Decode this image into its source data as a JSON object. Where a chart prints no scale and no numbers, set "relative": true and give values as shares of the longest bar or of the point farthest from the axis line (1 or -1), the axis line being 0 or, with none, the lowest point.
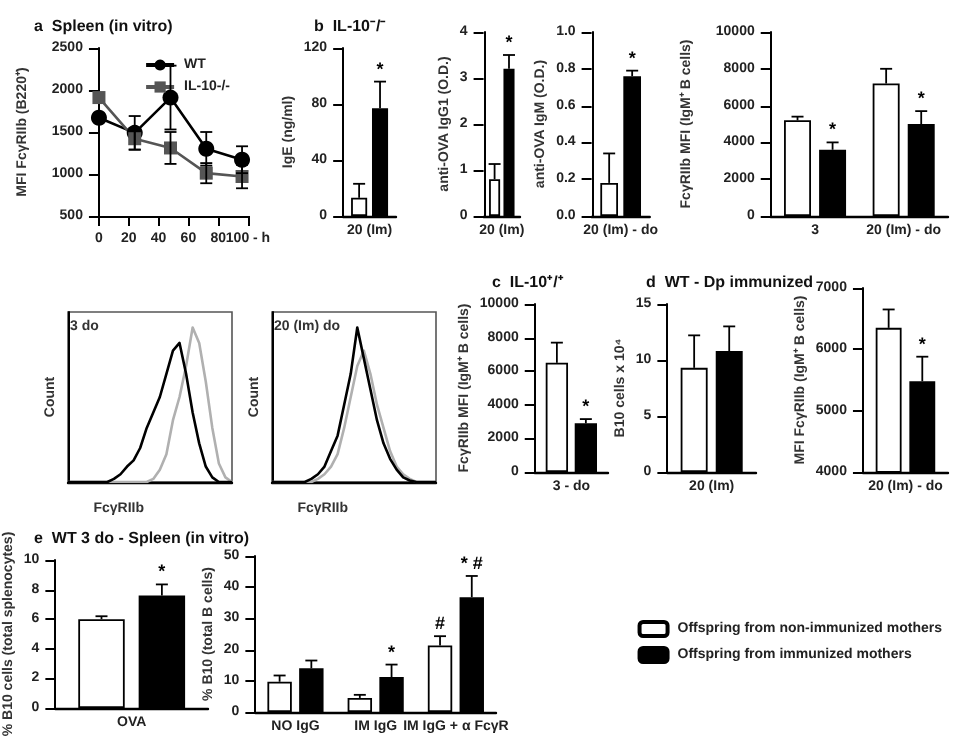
{
  "chart_data": [
    {
      "type": "line",
      "title": "a  Spleen (in vitro)",
      "ylabel": "MFI FcγRIIb (B220⁺)",
      "xlim": [
        0,
        100
      ],
      "xticks": [
        0,
        20,
        40,
        60,
        80,
        {
          "value": 100,
          "label": "100 - h"
        }
      ],
      "ylim": [
        500,
        2500
      ],
      "yticks": [
        500,
        1000,
        1500,
        2000,
        2500
      ],
      "legend": "top right",
      "series": [
        {
          "name": "WT",
          "color": "#000000",
          "marker": "circle",
          "x": [
            0,
            24,
            48,
            72,
            96
          ],
          "values": [
            1670,
            1490,
            1910,
            1300,
            1170
          ],
          "errors": [
            null,
            200,
            380,
            200,
            160
          ]
        },
        {
          "name": "IL-10-/-",
          "color": "#555555",
          "marker": "square",
          "x": [
            0,
            24,
            48,
            72,
            96
          ],
          "values": [
            1910,
            1420,
            1310,
            1010,
            970
          ],
          "errors": [
            null,
            130,
            190,
            120,
            140
          ]
        }
      ]
    },
    {
      "type": "bar",
      "title": "b  IL-10⁻/⁻",
      "ylabel": "IgE (ng/ml)",
      "categories": [
        "20 (Im)"
      ],
      "ylim": [
        0,
        120
      ],
      "yticks": [
        0,
        40,
        80,
        120
      ],
      "series": [
        {
          "color": "#ffffff",
          "values": [
            13
          ],
          "errors": [
            10
          ]
        },
        {
          "color": "#000000",
          "values": [
            77
          ],
          "errors": [
            19
          ],
          "value_labels": [
            "*"
          ]
        }
      ]
    },
    {
      "type": "bar",
      "ylabel": "anti-OVA IgG1 (O.D.)",
      "categories": [
        "20 (Im)"
      ],
      "ylim": [
        0,
        4
      ],
      "yticks": [
        0,
        1,
        2,
        3,
        4
      ],
      "series": [
        {
          "color": "#ffffff",
          "values": [
            0.8
          ],
          "errors": [
            0.33
          ]
        },
        {
          "color": "#000000",
          "values": [
            3.2
          ],
          "errors": [
            0.3
          ],
          "value_labels": [
            "*"
          ]
        }
      ]
    },
    {
      "type": "bar",
      "ylabel": "anti-OVA IgM (O.D.)",
      "categories": [
        "20 (Im) - do"
      ],
      "ylim": [
        0,
        1
      ],
      "yticks": [
        {
          "value": 0,
          "label": "0.0"
        },
        0.2,
        0.4,
        0.6,
        0.8,
        {
          "value": 1,
          "label": "1.0"
        }
      ],
      "series": [
        {
          "color": "#ffffff",
          "values": [
            0.18
          ],
          "errors": [
            0.16
          ]
        },
        {
          "color": "#000000",
          "values": [
            0.76
          ],
          "errors": [
            0.03
          ],
          "value_labels": [
            "*"
          ]
        }
      ]
    },
    {
      "type": "bar",
      "ylabel": "FcγRIIb MFI (IgM⁺ B cells)",
      "categories": [
        "3",
        "20 (Im) - do"
      ],
      "ylim": [
        0,
        10000
      ],
      "yticks": [
        0,
        2000,
        4000,
        6000,
        8000,
        10000
      ],
      "series": [
        {
          "color": "#ffffff",
          "values": [
            5200,
            7200
          ],
          "errors": [
            200,
            800
          ]
        },
        {
          "color": "#000000",
          "values": [
            3600,
            5000
          ],
          "errors": [
            400,
            700
          ],
          "value_labels": [
            "*",
            "*"
          ]
        }
      ]
    },
    {
      "type": "line",
      "relative": true,
      "marker": "none",
      "xlabel": "FcγRIIb",
      "ylabel": "Count",
      "annotations": [
        "3 do"
      ],
      "categories": [
        null,
        null,
        null,
        null,
        null,
        null,
        null,
        null,
        null,
        null,
        null,
        null,
        null,
        null,
        null,
        null,
        null,
        null,
        null,
        null,
        null,
        null,
        null,
        null,
        null,
        null
      ],
      "series": [
        {
          "color": "#b0b0b0",
          "values": [
            0,
            0,
            0,
            0,
            0,
            0,
            0,
            0,
            0,
            0,
            0,
            0,
            0,
            0.02,
            0.08,
            0.18,
            0.4,
            0.55,
            0.75,
            1,
            0.9,
            0.65,
            0.35,
            0.12,
            0.03,
            0
          ]
        },
        {
          "color": "#000000",
          "values": [
            0,
            0,
            0,
            0,
            0,
            0,
            0,
            0.02,
            0.05,
            0.1,
            0.14,
            0.22,
            0.35,
            0.45,
            0.55,
            0.7,
            0.85,
            0.9,
            0.7,
            0.45,
            0.25,
            0.1,
            0.03,
            0,
            0,
            0
          ]
        }
      ]
    },
    {
      "type": "line",
      "relative": true,
      "marker": "none",
      "xlabel": "FcγRIIb",
      "ylabel": "Count",
      "annotations": [
        "20 (Im) do"
      ],
      "categories": [
        null,
        null,
        null,
        null,
        null,
        null,
        null,
        null,
        null,
        null,
        null,
        null,
        null,
        null,
        null,
        null,
        null,
        null,
        null,
        null,
        null,
        null,
        null,
        null,
        null,
        null
      ],
      "series": [
        {
          "color": "#b0b0b0",
          "values": [
            0,
            0,
            0,
            0,
            0,
            0,
            0,
            0.02,
            0.05,
            0.1,
            0.18,
            0.35,
            0.55,
            0.75,
            0.85,
            0.7,
            0.5,
            0.35,
            0.2,
            0.1,
            0.05,
            0.02,
            0,
            0,
            0,
            0
          ]
        },
        {
          "color": "#000000",
          "values": [
            0,
            0,
            0,
            0,
            0,
            0,
            0.02,
            0.05,
            0.1,
            0.2,
            0.3,
            0.5,
            0.7,
            1,
            0.8,
            0.6,
            0.4,
            0.25,
            0.15,
            0.08,
            0.03,
            0.01,
            0,
            0,
            0,
            0
          ]
        }
      ]
    },
    {
      "type": "bar",
      "title": "c  IL-10⁺/⁺",
      "ylabel": "FcγRIIb MFI (IgM⁺ B cells)",
      "categories": [
        "3 - do"
      ],
      "ylim": [
        0,
        10000
      ],
      "yticks": [
        0,
        2000,
        4000,
        6000,
        8000,
        10000
      ],
      "series": [
        {
          "color": "#ffffff",
          "values": [
            6500
          ],
          "errors": [
            1200
          ]
        },
        {
          "color": "#000000",
          "values": [
            2900
          ],
          "errors": [
            250
          ],
          "value_labels": [
            "*"
          ]
        }
      ]
    },
    {
      "type": "bar",
      "title": "d  WT - Dp immunized",
      "ylabel": "B10 cells x 10⁴",
      "categories": [
        "20 (Im)"
      ],
      "ylim": [
        0,
        15
      ],
      "yticks": [
        0,
        5,
        10,
        15
      ],
      "series": [
        {
          "color": "#ffffff",
          "values": [
            9.3
          ],
          "errors": [
            2.9
          ]
        },
        {
          "color": "#000000",
          "values": [
            10.8
          ],
          "errors": [
            2.2
          ]
        }
      ]
    },
    {
      "type": "bar",
      "ylabel": "MFI FcγRIIb (IgM⁺ B cells)",
      "categories": [
        "20 (Im) - do"
      ],
      "ylim": [
        4000,
        7000
      ],
      "yticks": [
        4000,
        5000,
        6000,
        7000
      ],
      "series": [
        {
          "color": "#ffffff",
          "values": [
            6350
          ],
          "errors": [
            300
          ]
        },
        {
          "color": "#000000",
          "values": [
            5480
          ],
          "errors": [
            400
          ],
          "value_labels": [
            "*"
          ]
        }
      ]
    },
    {
      "type": "bar",
      "title": "e  WT 3 do - Spleen (in vitro)",
      "ylabel": "% B10 cells (total splenocytes)",
      "categories": [
        "OVA"
      ],
      "ylim": [
        0,
        10
      ],
      "yticks": [
        0,
        2,
        4,
        6,
        8,
        10
      ],
      "series": [
        {
          "color": "#ffffff",
          "values": [
            6.0
          ],
          "errors": [
            0.2
          ]
        },
        {
          "color": "#000000",
          "values": [
            7.6
          ],
          "errors": [
            0.75
          ],
          "value_labels": [
            "*"
          ]
        }
      ]
    },
    {
      "type": "bar",
      "ylabel": "% B10 (total B cells)",
      "categories": [
        "NO IgG",
        "IM IgG",
        "IM IgG + α FcγR"
      ],
      "ylim": [
        0,
        50
      ],
      "yticks": [
        0,
        10,
        20,
        30,
        40,
        50
      ],
      "legend": "right",
      "series": [
        {
          "name": "Offspring from non-immunized mothers",
          "color": "#ffffff",
          "values": [
            9.7,
            4.5,
            21.3
          ],
          "errors": [
            2,
            1,
            3
          ],
          "value_labels": [
            null,
            null,
            "#"
          ]
        },
        {
          "name": "Offspring from immunized mothers",
          "color": "#000000",
          "values": [
            14,
            11.2,
            36.8
          ],
          "errors": [
            2.5,
            4,
            6.8
          ],
          "value_labels": [
            null,
            "*",
            "* #"
          ]
        }
      ]
    }
  ]
}
